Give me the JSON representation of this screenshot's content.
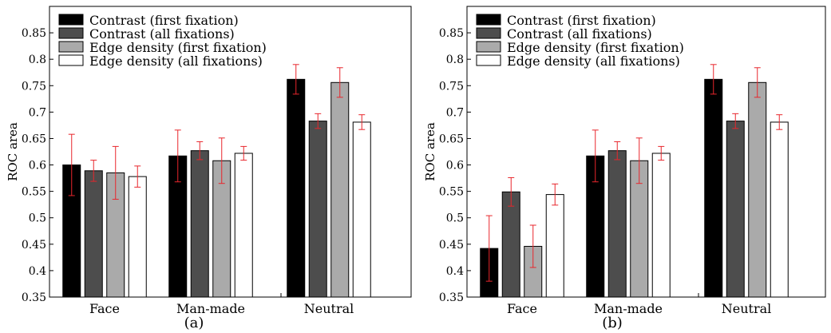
{
  "chart_data": [
    {
      "type": "bar",
      "panel_label": "(a)",
      "ylabel": "ROC area",
      "ylim": [
        0.35,
        0.9
      ],
      "yticks": [
        0.35,
        0.4,
        0.45,
        0.5,
        0.55,
        0.6,
        0.65,
        0.7,
        0.75,
        0.8,
        0.85
      ],
      "ytick_labels": [
        "0.35",
        "0.4",
        "0.45",
        "0.5",
        "0.55",
        "0.6",
        "0.65",
        "0.7",
        "0.75",
        "0.8",
        "0.85"
      ],
      "categories": [
        "Face",
        "Man-made",
        "Neutral"
      ],
      "legend_position": "top-left",
      "grid": false,
      "series": [
        {
          "name": "Contrast (first fixation)",
          "color": "#000000",
          "values": [
            0.6,
            0.617,
            0.762
          ],
          "errors": [
            0.058,
            0.049,
            0.028
          ]
        },
        {
          "name": "Contrast (all fixations)",
          "color": "#4d4d4d",
          "values": [
            0.589,
            0.627,
            0.683
          ],
          "errors": [
            0.02,
            0.017,
            0.014
          ]
        },
        {
          "name": "Edge density (first fixation)",
          "color": "#aaaaaa",
          "values": [
            0.585,
            0.608,
            0.756
          ],
          "errors": [
            0.05,
            0.043,
            0.028
          ]
        },
        {
          "name": "Edge density (all fixations)",
          "color": "#ffffff",
          "values": [
            0.578,
            0.622,
            0.681
          ],
          "errors": [
            0.02,
            0.013,
            0.014
          ]
        }
      ]
    },
    {
      "type": "bar",
      "panel_label": "(b)",
      "ylabel": "ROC area",
      "ylim": [
        0.35,
        0.9
      ],
      "yticks": [
        0.35,
        0.4,
        0.45,
        0.5,
        0.55,
        0.6,
        0.65,
        0.7,
        0.75,
        0.8,
        0.85
      ],
      "ytick_labels": [
        "0.35",
        "0.4",
        "0.45",
        "0.5",
        "0.55",
        "0.6",
        "0.65",
        "0.7",
        "0.75",
        "0.8",
        "0.85"
      ],
      "categories": [
        "Face",
        "Man-made",
        "Neutral"
      ],
      "legend_position": "top-left",
      "grid": false,
      "series": [
        {
          "name": "Contrast (first fixation)",
          "color": "#000000",
          "values": [
            0.442,
            0.617,
            0.762
          ],
          "errors": [
            0.062,
            0.049,
            0.028
          ]
        },
        {
          "name": "Contrast (all fixations)",
          "color": "#4d4d4d",
          "values": [
            0.549,
            0.627,
            0.683
          ],
          "errors": [
            0.027,
            0.017,
            0.014
          ]
        },
        {
          "name": "Edge density (first fixation)",
          "color": "#aaaaaa",
          "values": [
            0.446,
            0.608,
            0.756
          ],
          "errors": [
            0.04,
            0.043,
            0.028
          ]
        },
        {
          "name": "Edge density (all fixations)",
          "color": "#ffffff",
          "values": [
            0.544,
            0.622,
            0.681
          ],
          "errors": [
            0.02,
            0.013,
            0.014
          ]
        }
      ]
    }
  ],
  "error_bar_color": "#e8262c"
}
